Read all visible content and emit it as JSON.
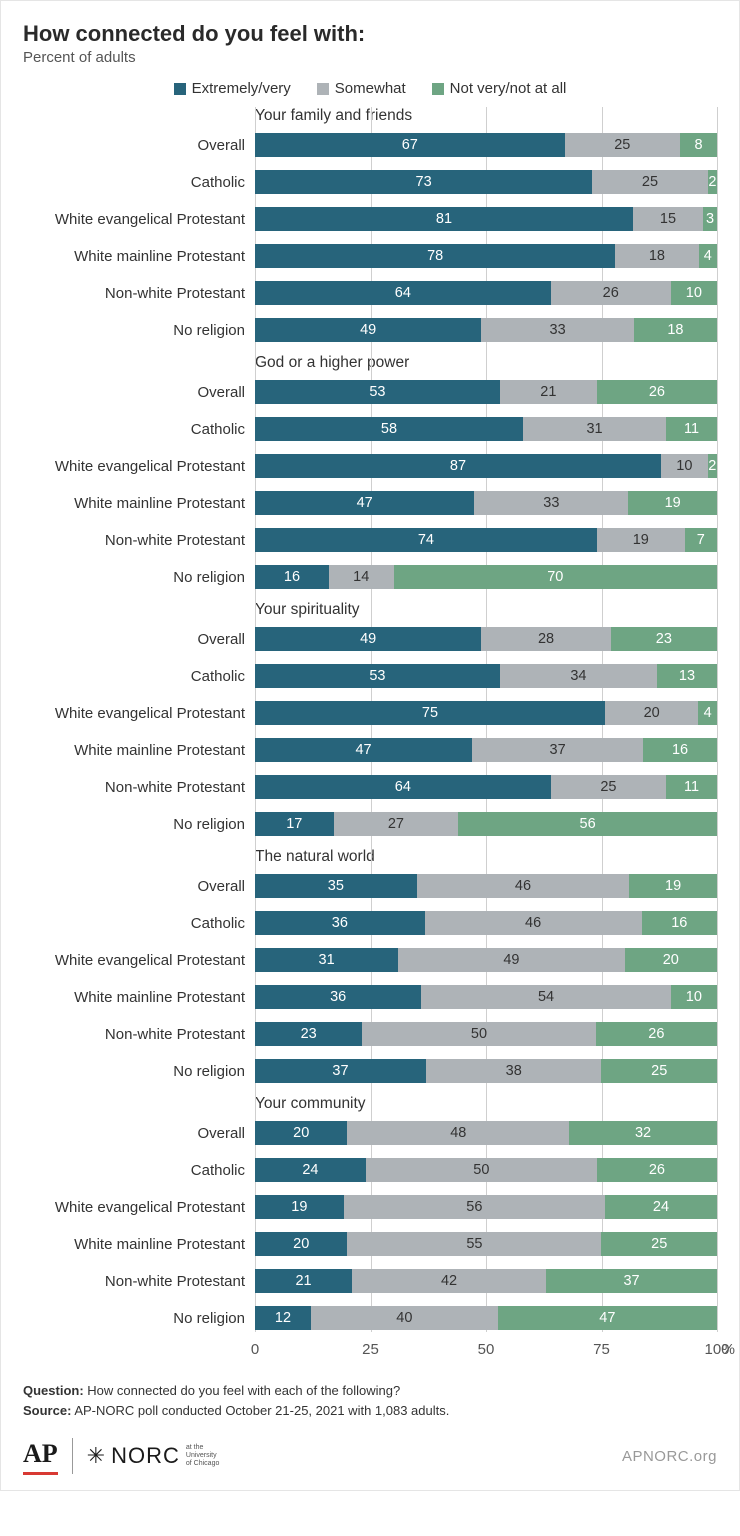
{
  "title": "How connected do you feel with:",
  "subtitle": "Percent of adults",
  "legend": [
    {
      "label": "Extremely/very",
      "color": "#27647b"
    },
    {
      "label": "Somewhat",
      "color": "#aeb3b7"
    },
    {
      "label": "Not very/not at all",
      "color": "#6ea583"
    }
  ],
  "colors": {
    "extremely": "#27647b",
    "somewhat": "#aeb3b7",
    "not": "#6ea583",
    "grid": "#cfcfcf",
    "text_on_gray": "#333333"
  },
  "row_labels": [
    "Overall",
    "Catholic",
    "White evangelical Protestant",
    "White mainline Protestant",
    "Non-white Protestant",
    "No religion"
  ],
  "panels": [
    {
      "title": "Your family and friends",
      "rows": [
        {
          "v": [
            67,
            25,
            8
          ]
        },
        {
          "v": [
            73,
            25,
            2
          ]
        },
        {
          "v": [
            81,
            15,
            3
          ]
        },
        {
          "v": [
            78,
            18,
            4
          ]
        },
        {
          "v": [
            64,
            26,
            10
          ]
        },
        {
          "v": [
            49,
            33,
            18
          ]
        }
      ]
    },
    {
      "title": "God or a higher power",
      "rows": [
        {
          "v": [
            53,
            21,
            26
          ]
        },
        {
          "v": [
            58,
            31,
            11
          ]
        },
        {
          "v": [
            87,
            10,
            2
          ]
        },
        {
          "v": [
            47,
            33,
            19
          ]
        },
        {
          "v": [
            74,
            19,
            7
          ]
        },
        {
          "v": [
            16,
            14,
            70
          ]
        }
      ]
    },
    {
      "title": "Your spirituality",
      "rows": [
        {
          "v": [
            49,
            28,
            23
          ]
        },
        {
          "v": [
            53,
            34,
            13
          ]
        },
        {
          "v": [
            75,
            20,
            4
          ]
        },
        {
          "v": [
            47,
            37,
            16
          ]
        },
        {
          "v": [
            64,
            25,
            11
          ]
        },
        {
          "v": [
            17,
            27,
            56
          ]
        }
      ]
    },
    {
      "title": "The natural world",
      "rows": [
        {
          "v": [
            35,
            46,
            19
          ]
        },
        {
          "v": [
            36,
            46,
            16
          ]
        },
        {
          "v": [
            31,
            49,
            20
          ]
        },
        {
          "v": [
            36,
            54,
            10
          ]
        },
        {
          "v": [
            23,
            50,
            26
          ]
        },
        {
          "v": [
            37,
            38,
            25
          ]
        }
      ]
    },
    {
      "title": "Your community",
      "rows": [
        {
          "v": [
            20,
            48,
            32
          ]
        },
        {
          "v": [
            24,
            50,
            26
          ]
        },
        {
          "v": [
            19,
            56,
            24
          ]
        },
        {
          "v": [
            20,
            55,
            25
          ]
        },
        {
          "v": [
            21,
            42,
            37
          ]
        },
        {
          "v": [
            12,
            40,
            47
          ]
        }
      ]
    }
  ],
  "axis": {
    "ticks": [
      0,
      25,
      50,
      75,
      100
    ],
    "suffix": "%"
  },
  "footer": {
    "question_label": "Question:",
    "question": "How connected do you feel with each of the following?",
    "source_label": "Source:",
    "source": "AP-NORC poll conducted October 21-25, 2021 with 1,083 adults."
  },
  "logos": {
    "ap": "AP",
    "norc": "NORC",
    "norc_sub1": "at the",
    "norc_sub2": "University",
    "norc_sub3": "of Chicago",
    "site": "APNORC.org"
  }
}
